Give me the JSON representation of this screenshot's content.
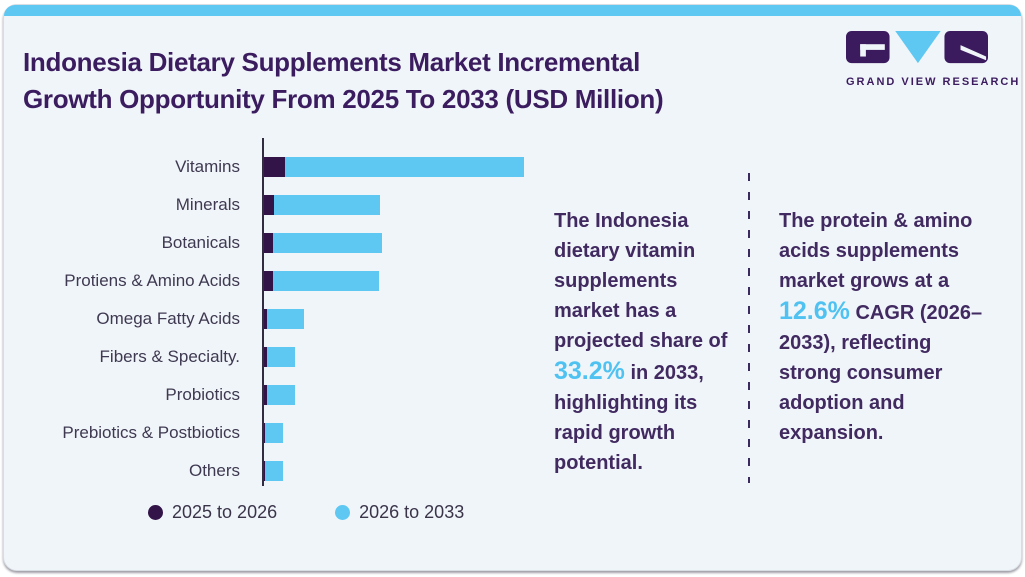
{
  "card": {
    "background": "#f0f5fa",
    "top_strip_color": "#5ec8f2",
    "border_color": "#d8dde4"
  },
  "header": {
    "title_line1": "Indonesia Dietary Supplements Market Incremental",
    "title_line2": "Growth Opportunity From 2025 To 2033 (USD Million)",
    "title_color": "#3b1d5f"
  },
  "logo": {
    "text": "GRAND VIEW RESEARCH",
    "dark_color": "#3b1b5e",
    "blue_color": "#5ec8f2"
  },
  "chart_data": {
    "type": "bar",
    "orientation": "horizontal",
    "stacked": true,
    "title": "Indonesia Dietary Supplements Market Incremental Growth Opportunity From 2025 To 2033 (USD Million)",
    "units": "USD Million",
    "value_axis_labels_shown": false,
    "value_note": "no numeric axis shown; values are relative bar lengths",
    "grid": false,
    "legend_position": "bottom",
    "categories": [
      "Vitamins",
      "Minerals",
      "Botanicals",
      "Protiens & Amino Acids",
      "Omega Fatty Acids",
      "Fibers & Specialty.",
      "Probiotics",
      "Prebiotics & Postbiotics",
      "Others"
    ],
    "series": [
      {
        "name": "2025 to 2026",
        "color": "#321448",
        "values": [
          21,
          10,
          9,
          9,
          3,
          3,
          3,
          1,
          1
        ]
      },
      {
        "name": "2026 to 2033",
        "color": "#5ec8f2",
        "values": [
          239,
          106,
          109,
          106,
          37,
          28,
          28,
          18,
          18
        ]
      }
    ]
  },
  "insights": [
    {
      "pre": "The Indonesia dietary vitamin supplements market has a projected share of ",
      "highlight": "33.2%",
      "post": " in 2033, highlighting its rapid growth potential.",
      "highlight_color": "#4fc2f1"
    },
    {
      "pre": "The protein & amino acids supplements market grows at a ",
      "highlight": "12.6%",
      "post": " CAGR (2026–2033), reflecting strong consumer adoption and expansion.",
      "highlight_color": "#4fc2f1"
    }
  ]
}
